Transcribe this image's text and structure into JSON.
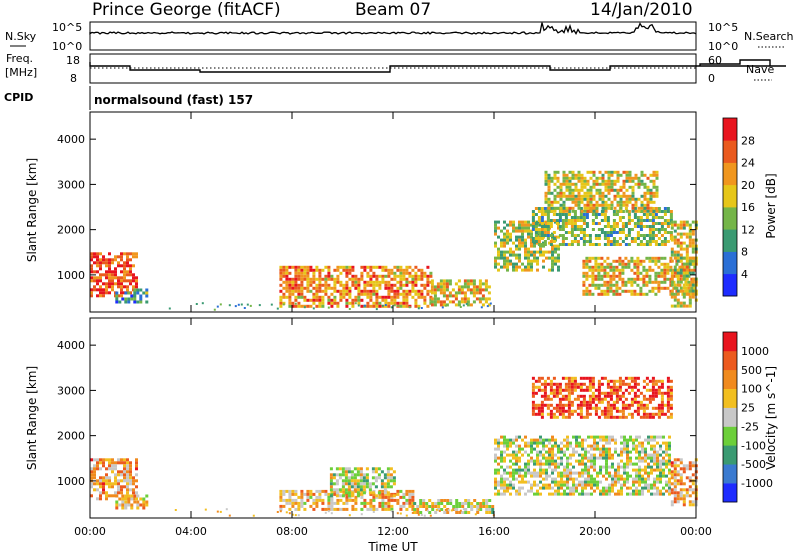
{
  "header": {
    "station": "Prince George (fitACF)",
    "beam": "Beam 07",
    "date": "14/Jan/2010"
  },
  "top_panels": {
    "nsky_label": "N.Sky",
    "nsky_ticks": [
      "10^5",
      "10^0"
    ],
    "nsearch_label": "N.Search",
    "nsearch_ticks": [
      "10^5",
      "10^0"
    ],
    "freq_label_1": "Freq.",
    "freq_label_2": "[MHz]",
    "freq_ticks": [
      "18",
      "8"
    ],
    "nave_label": "Nave",
    "nave_ticks": [
      "60",
      "0"
    ],
    "cpid_label": "CPID",
    "cpid_value": "normalsound (fast) 157"
  },
  "chart_data": [
    {
      "type": "heatmap",
      "name": "power",
      "ylabel": "Slant Range [km]",
      "xlabel": "Time UT",
      "x_ticks": [
        "00:00",
        "04:00",
        "08:00",
        "12:00",
        "16:00",
        "20:00",
        "00:00"
      ],
      "y_ticks": [
        "1000",
        "2000",
        "3000",
        "4000"
      ],
      "ylim": [
        180,
        4600
      ],
      "xlim_hours": [
        0,
        24
      ],
      "colorbar_label": "Power [dB]",
      "colorbar_ticks": [
        "4",
        "8",
        "12",
        "16",
        "20",
        "24",
        "28"
      ],
      "colorbar_colors": [
        "#1e2cff",
        "#2a6fd6",
        "#3a9a72",
        "#74b548",
        "#e6c619",
        "#f0961e",
        "#ea5a1e",
        "#e8141e"
      ],
      "regions": [
        {
          "t": [
            0.0,
            1.9
          ],
          "r": [
            550,
            1500
          ],
          "level": 0.85
        },
        {
          "t": [
            1.0,
            2.2
          ],
          "r": [
            400,
            700
          ],
          "level": 0.3
        },
        {
          "t": [
            7.5,
            13.5
          ],
          "r": [
            300,
            1200
          ],
          "level": 0.7
        },
        {
          "t": [
            13.5,
            15.8
          ],
          "r": [
            350,
            900
          ],
          "level": 0.6
        },
        {
          "t": [
            16.0,
            18.5
          ],
          "r": [
            1100,
            2200
          ],
          "level": 0.5
        },
        {
          "t": [
            17.5,
            23.0
          ],
          "r": [
            1700,
            2500
          ],
          "level": 0.45
        },
        {
          "t": [
            18.0,
            22.5
          ],
          "r": [
            2400,
            3300
          ],
          "level": 0.55
        },
        {
          "t": [
            19.5,
            24.0
          ],
          "r": [
            600,
            1400
          ],
          "level": 0.6
        },
        {
          "t": [
            23.0,
            24.0
          ],
          "r": [
            300,
            2200
          ],
          "level": 0.55
        }
      ]
    },
    {
      "type": "heatmap",
      "name": "velocity",
      "ylabel": "Slant Range [km]",
      "xlabel": "Time UT",
      "x_ticks": [
        "00:00",
        "04:00",
        "08:00",
        "12:00",
        "16:00",
        "20:00",
        "00:00"
      ],
      "y_ticks": [
        "1000",
        "2000",
        "3000",
        "4000"
      ],
      "ylim": [
        180,
        4600
      ],
      "xlim_hours": [
        0,
        24
      ],
      "colorbar_label": "Velocity [m s^-1]",
      "colorbar_ticks": [
        "1000",
        "500",
        "100",
        "25",
        "-25",
        "-100",
        "-500",
        "-1000"
      ],
      "colorbar_colors": [
        "#1e2cff",
        "#3a7ad0",
        "#3a9a72",
        "#6ccf3a",
        "#c8c8c8",
        "#f2bf20",
        "#f08a1e",
        "#ec5a1e",
        "#e8141e"
      ],
      "regions": [
        {
          "t": [
            0.0,
            1.9
          ],
          "r": [
            600,
            1500
          ],
          "level": 0.68
        },
        {
          "t": [
            1.0,
            2.2
          ],
          "r": [
            400,
            700
          ],
          "level": 0.62
        },
        {
          "t": [
            7.5,
            12.8
          ],
          "r": [
            350,
            800
          ],
          "level": 0.64
        },
        {
          "t": [
            9.5,
            12.0
          ],
          "r": [
            700,
            1300
          ],
          "level": 0.5
        },
        {
          "t": [
            12.8,
            16.0
          ],
          "r": [
            300,
            600
          ],
          "level": 0.55
        },
        {
          "t": [
            16.0,
            23.0
          ],
          "r": [
            700,
            2000
          ],
          "level": 0.5
        },
        {
          "t": [
            17.5,
            23.0
          ],
          "r": [
            2400,
            3300
          ],
          "level": 0.85
        },
        {
          "t": [
            23.0,
            24.0
          ],
          "r": [
            500,
            1500
          ],
          "level": 0.68
        }
      ]
    }
  ]
}
